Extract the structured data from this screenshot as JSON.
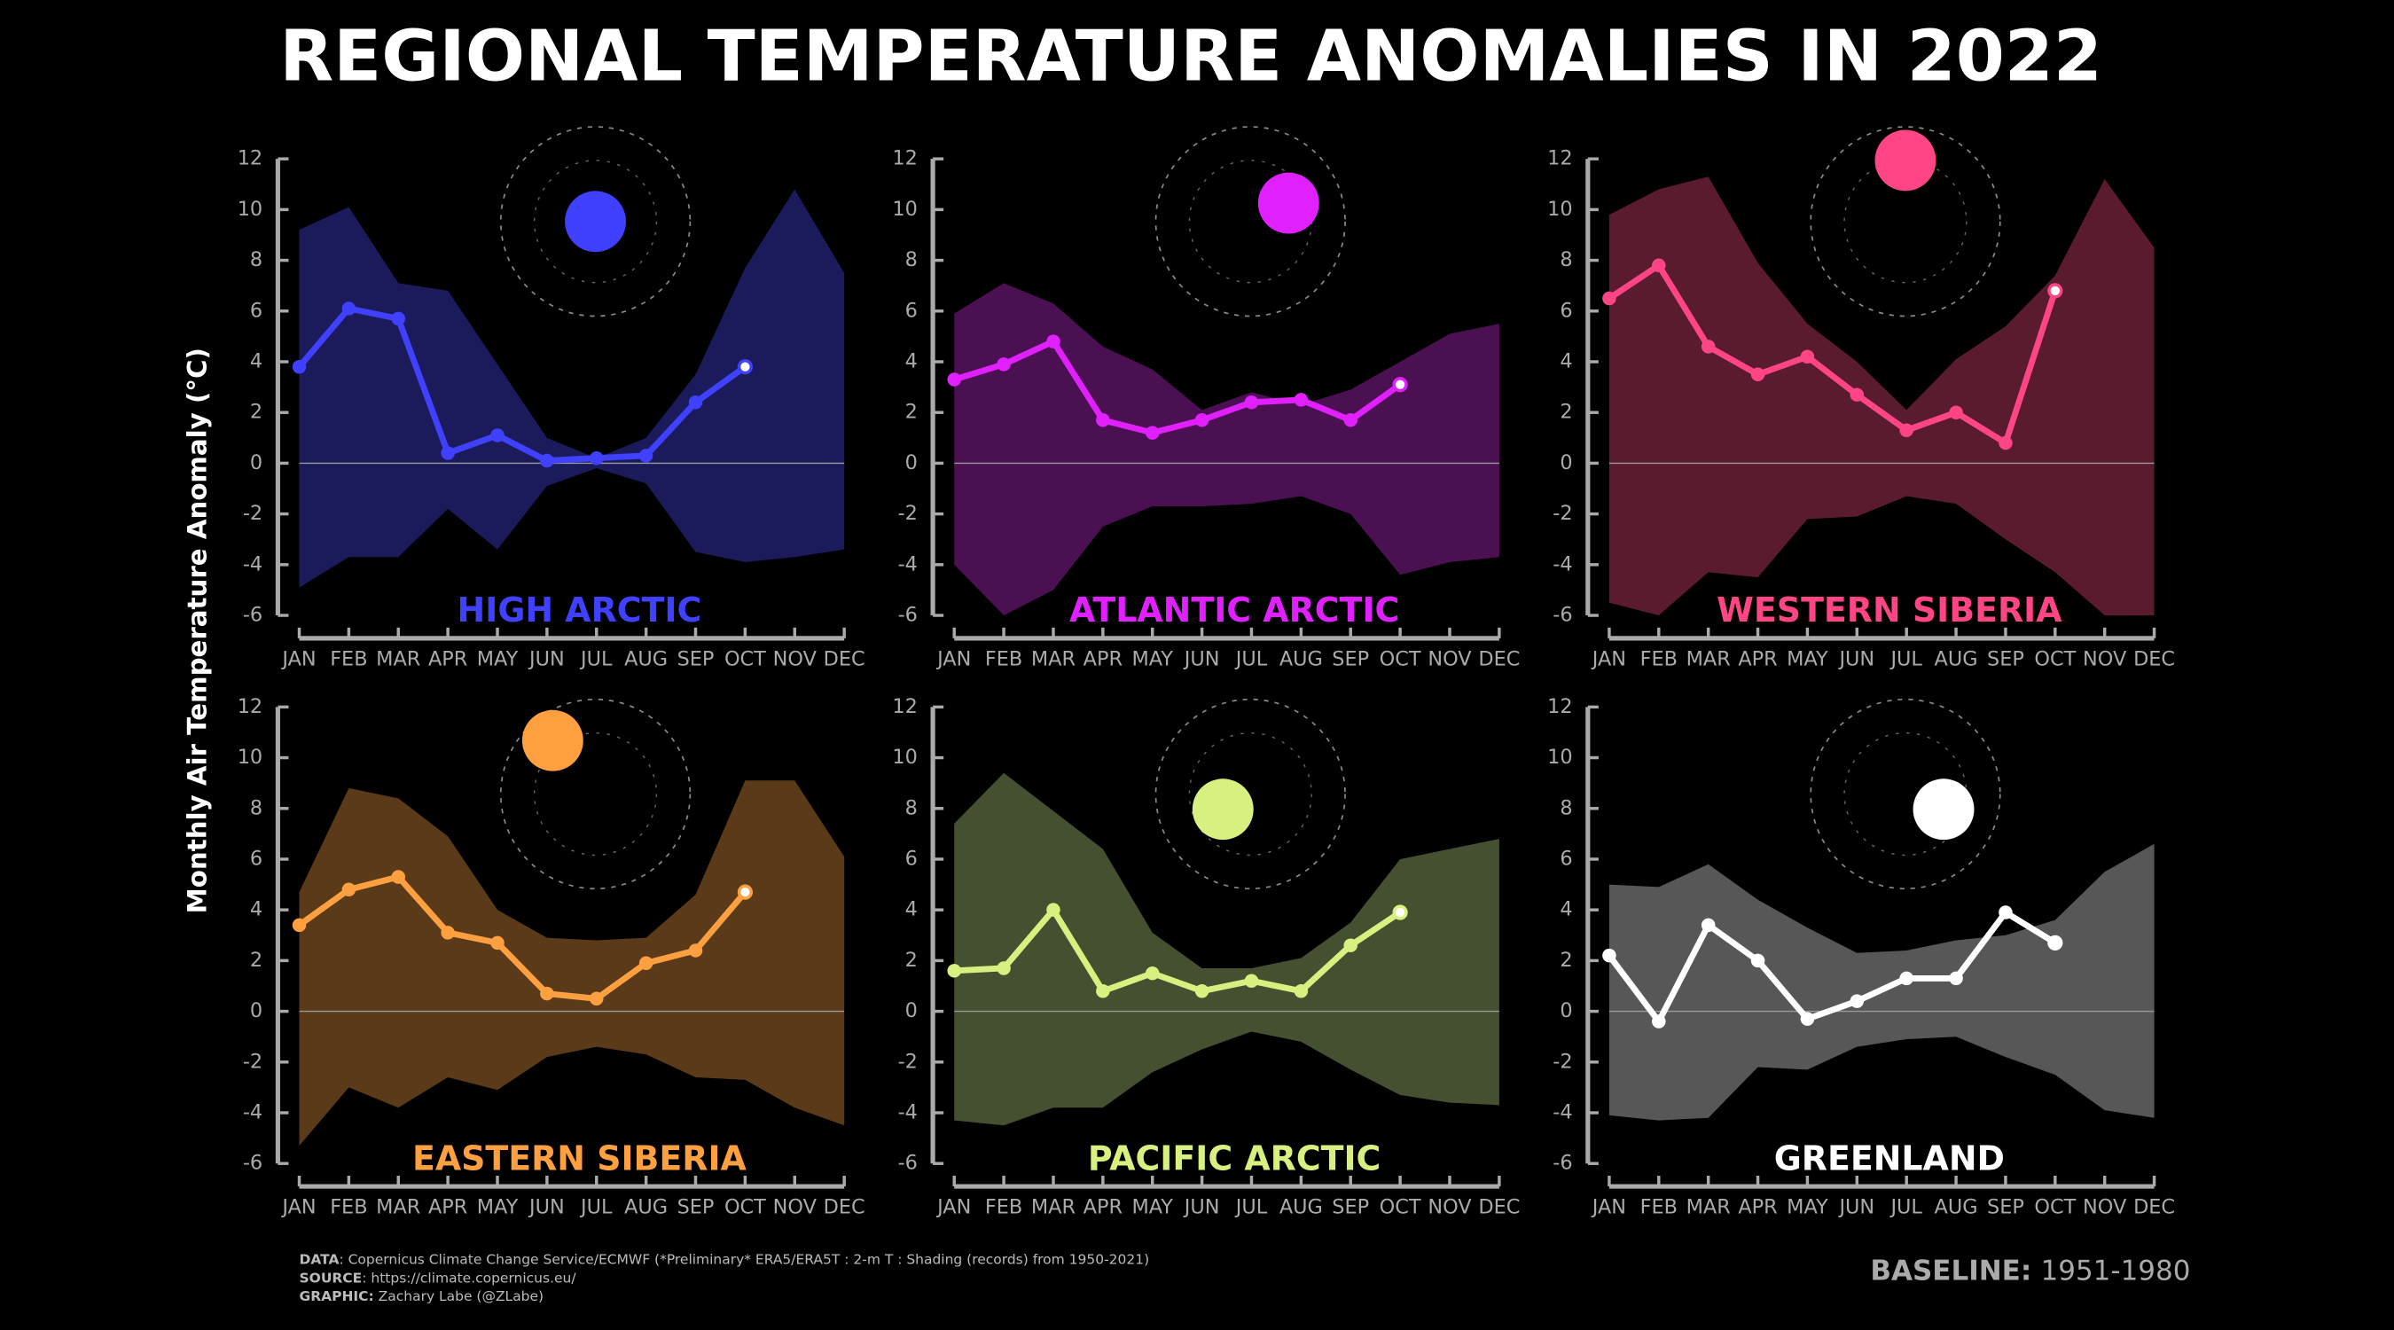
{
  "title": "REGIONAL TEMPERATURE ANOMALIES IN 2022",
  "y_label": "Monthly Air Temperature Anomaly (°C)",
  "footer": {
    "data_label": "DATA",
    "data_text": ": Copernicus Climate Change Service/ECMWF (*Preliminary* ERA5/ERA5T : 2-m T : Shading (records) from 1950-2021)",
    "source_label": "SOURCE",
    "source_text": ": https://climate.copernicus.eu/",
    "graphic_label": "GRAPHIC:",
    "graphic_text": " Zachary Labe (@ZLabe)",
    "baseline_label": "BASELINE:",
    "baseline_text": "1951-1980"
  },
  "chart_data": [
    {
      "type": "line",
      "title": "HIGH ARCTIC",
      "categories": [
        "JAN",
        "FEB",
        "MAR",
        "APR",
        "MAY",
        "JUN",
        "JUL",
        "AUG",
        "SEP",
        "OCT",
        "NOV",
        "DEC"
      ],
      "series": [
        {
          "color": "#4040ff",
          "values": [
            3.8,
            6.1,
            5.7,
            0.4,
            1.1,
            0.1,
            0.2,
            0.3,
            2.4,
            3.8,
            null,
            null
          ]
        }
      ],
      "range": {
        "color": "#1b1b5c",
        "upper": [
          9.2,
          10.1,
          7.1,
          6.8,
          3.9,
          1.0,
          0.2,
          1.0,
          3.5,
          7.7,
          10.8,
          7.5
        ],
        "lower": [
          -4.9,
          -3.7,
          -3.7,
          -1.8,
          -3.4,
          -0.9,
          -0.2,
          -0.8,
          -3.5,
          -3.9,
          -3.7,
          -3.4
        ]
      },
      "ylim": [
        -6,
        12
      ],
      "yticks": [
        -6,
        -4,
        -2,
        0,
        2,
        4,
        6,
        8,
        10,
        12
      ]
    },
    {
      "type": "line",
      "title": "ATLANTIC ARCTIC",
      "categories": [
        "JAN",
        "FEB",
        "MAR",
        "APR",
        "MAY",
        "JUN",
        "JUL",
        "AUG",
        "SEP",
        "OCT",
        "NOV",
        "DEC"
      ],
      "series": [
        {
          "color": "#e020ff",
          "values": [
            3.3,
            3.9,
            4.8,
            1.7,
            1.2,
            1.7,
            2.4,
            2.5,
            1.7,
            3.1,
            null,
            null
          ]
        }
      ],
      "range": {
        "color": "#4a1052",
        "upper": [
          5.9,
          7.1,
          6.3,
          4.6,
          3.7,
          2.1,
          2.8,
          2.3,
          2.9,
          4.0,
          5.1,
          5.5
        ],
        "lower": [
          -4.0,
          -6.0,
          -5.0,
          -2.5,
          -1.7,
          -1.7,
          -1.6,
          -1.3,
          -2.0,
          -4.4,
          -3.9,
          -3.7
        ]
      },
      "ylim": [
        -6,
        12
      ],
      "yticks": [
        -6,
        -4,
        -2,
        0,
        2,
        4,
        6,
        8,
        10,
        12
      ]
    },
    {
      "type": "line",
      "title": "WESTERN SIBERIA",
      "categories": [
        "JAN",
        "FEB",
        "MAR",
        "APR",
        "MAY",
        "JUN",
        "JUL",
        "AUG",
        "SEP",
        "OCT",
        "NOV",
        "DEC"
      ],
      "series": [
        {
          "color": "#ff4585",
          "values": [
            6.5,
            7.8,
            4.6,
            3.5,
            4.2,
            2.7,
            1.3,
            2.0,
            0.8,
            6.8,
            null,
            null
          ]
        }
      ],
      "range": {
        "color": "#5a1b2f",
        "upper": [
          9.8,
          10.8,
          11.3,
          7.9,
          5.5,
          4.0,
          2.1,
          4.1,
          5.4,
          7.4,
          11.2,
          8.5
        ],
        "lower": [
          -5.5,
          -6,
          -4.3,
          -4.5,
          -2.2,
          -2.1,
          -1.3,
          -1.6,
          -3.0,
          -4.3,
          -6,
          -6
        ]
      },
      "ylim": [
        -6,
        12
      ],
      "yticks": [
        -6,
        -4,
        -2,
        0,
        2,
        4,
        6,
        8,
        10,
        12
      ]
    },
    {
      "type": "line",
      "title": "EASTERN SIBERIA",
      "categories": [
        "JAN",
        "FEB",
        "MAR",
        "APR",
        "MAY",
        "JUN",
        "JUL",
        "AUG",
        "SEP",
        "OCT",
        "NOV",
        "DEC"
      ],
      "series": [
        {
          "color": "#ffa040",
          "values": [
            3.4,
            4.8,
            5.3,
            3.1,
            2.7,
            0.7,
            0.5,
            1.9,
            2.4,
            4.7,
            null,
            null
          ]
        }
      ],
      "range": {
        "color": "#5a3a18",
        "upper": [
          4.7,
          8.8,
          8.4,
          6.9,
          4.0,
          2.9,
          2.8,
          2.9,
          4.6,
          9.1,
          9.1,
          6.1
        ],
        "lower": [
          -5.3,
          -3.0,
          -3.8,
          -2.6,
          -3.1,
          -1.8,
          -1.4,
          -1.7,
          -2.6,
          -2.7,
          -3.8,
          -4.5
        ]
      },
      "ylim": [
        -6,
        12
      ],
      "yticks": [
        -6,
        -4,
        -2,
        0,
        2,
        4,
        6,
        8,
        10,
        12
      ]
    },
    {
      "type": "line",
      "title": "PACIFIC ARCTIC",
      "categories": [
        "JAN",
        "FEB",
        "MAR",
        "APR",
        "MAY",
        "JUN",
        "JUL",
        "AUG",
        "SEP",
        "OCT",
        "NOV",
        "DEC"
      ],
      "series": [
        {
          "color": "#d8f080",
          "values": [
            1.6,
            1.7,
            4.0,
            0.8,
            1.5,
            0.8,
            1.2,
            0.8,
            2.6,
            3.9,
            null,
            null
          ]
        }
      ],
      "range": {
        "color": "#445030",
        "upper": [
          7.4,
          9.4,
          7.9,
          6.4,
          3.1,
          1.7,
          1.7,
          2.1,
          3.5,
          6.0,
          6.4,
          6.8
        ],
        "lower": [
          -4.3,
          -4.5,
          -3.8,
          -3.8,
          -2.4,
          -1.5,
          -0.8,
          -1.2,
          -2.3,
          -3.3,
          -3.6,
          -3.7
        ]
      },
      "ylim": [
        -6,
        12
      ],
      "yticks": [
        -6,
        -4,
        -2,
        0,
        2,
        4,
        6,
        8,
        10,
        12
      ]
    },
    {
      "type": "line",
      "title": "GREENLAND",
      "categories": [
        "JAN",
        "FEB",
        "MAR",
        "APR",
        "MAY",
        "JUN",
        "JUL",
        "AUG",
        "SEP",
        "OCT",
        "NOV",
        "DEC"
      ],
      "series": [
        {
          "color": "#ffffff",
          "values": [
            2.2,
            -0.4,
            3.4,
            2.0,
            -0.3,
            0.4,
            1.3,
            1.3,
            3.9,
            2.7,
            null,
            null
          ]
        }
      ],
      "range": {
        "color": "#575757",
        "upper": [
          5.0,
          4.9,
          5.8,
          4.4,
          3.3,
          2.3,
          2.4,
          2.8,
          3.0,
          3.6,
          5.5,
          6.6
        ],
        "lower": [
          -4.1,
          -4.3,
          -4.2,
          -2.2,
          -2.3,
          -1.4,
          -1.1,
          -1.0,
          -1.8,
          -2.5,
          -3.9,
          -4.2
        ]
      },
      "ylim": [
        -6,
        12
      ],
      "yticks": [
        -6,
        -4,
        -2,
        0,
        2,
        4,
        6,
        8,
        10,
        12
      ]
    }
  ]
}
